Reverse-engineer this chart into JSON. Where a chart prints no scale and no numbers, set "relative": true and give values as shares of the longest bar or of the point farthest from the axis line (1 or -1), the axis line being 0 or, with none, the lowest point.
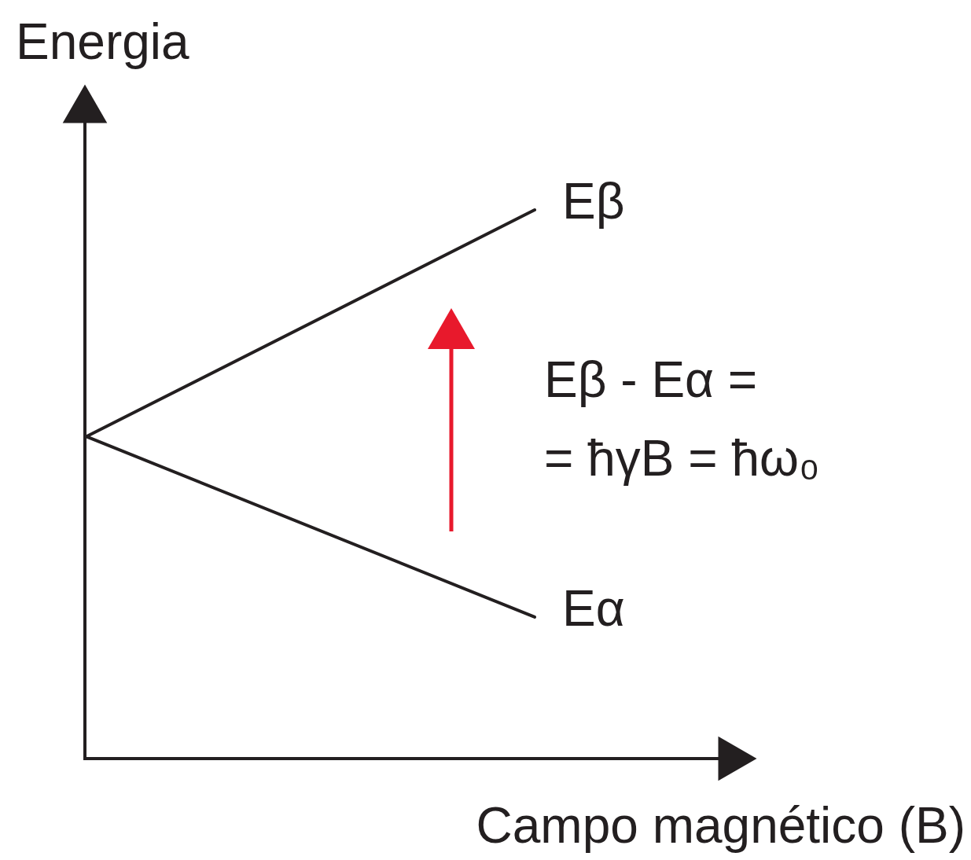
{
  "chart_data": {
    "type": "line",
    "relative": true,
    "ylabel": "Energia",
    "xlabel": "Campo magnético (B)",
    "categories": [
      null,
      null
    ],
    "series": [
      {
        "name": "Eβ",
        "color": "#231f20",
        "values": [
          0.587,
          1
        ]
      },
      {
        "name": "Eα",
        "color": "#231f20",
        "values": [
          0.587,
          0.258
        ]
      }
    ],
    "annotations": [
      "Eβ - Eα =",
      "= ħγB = ħω₀"
    ],
    "legend": false
  }
}
